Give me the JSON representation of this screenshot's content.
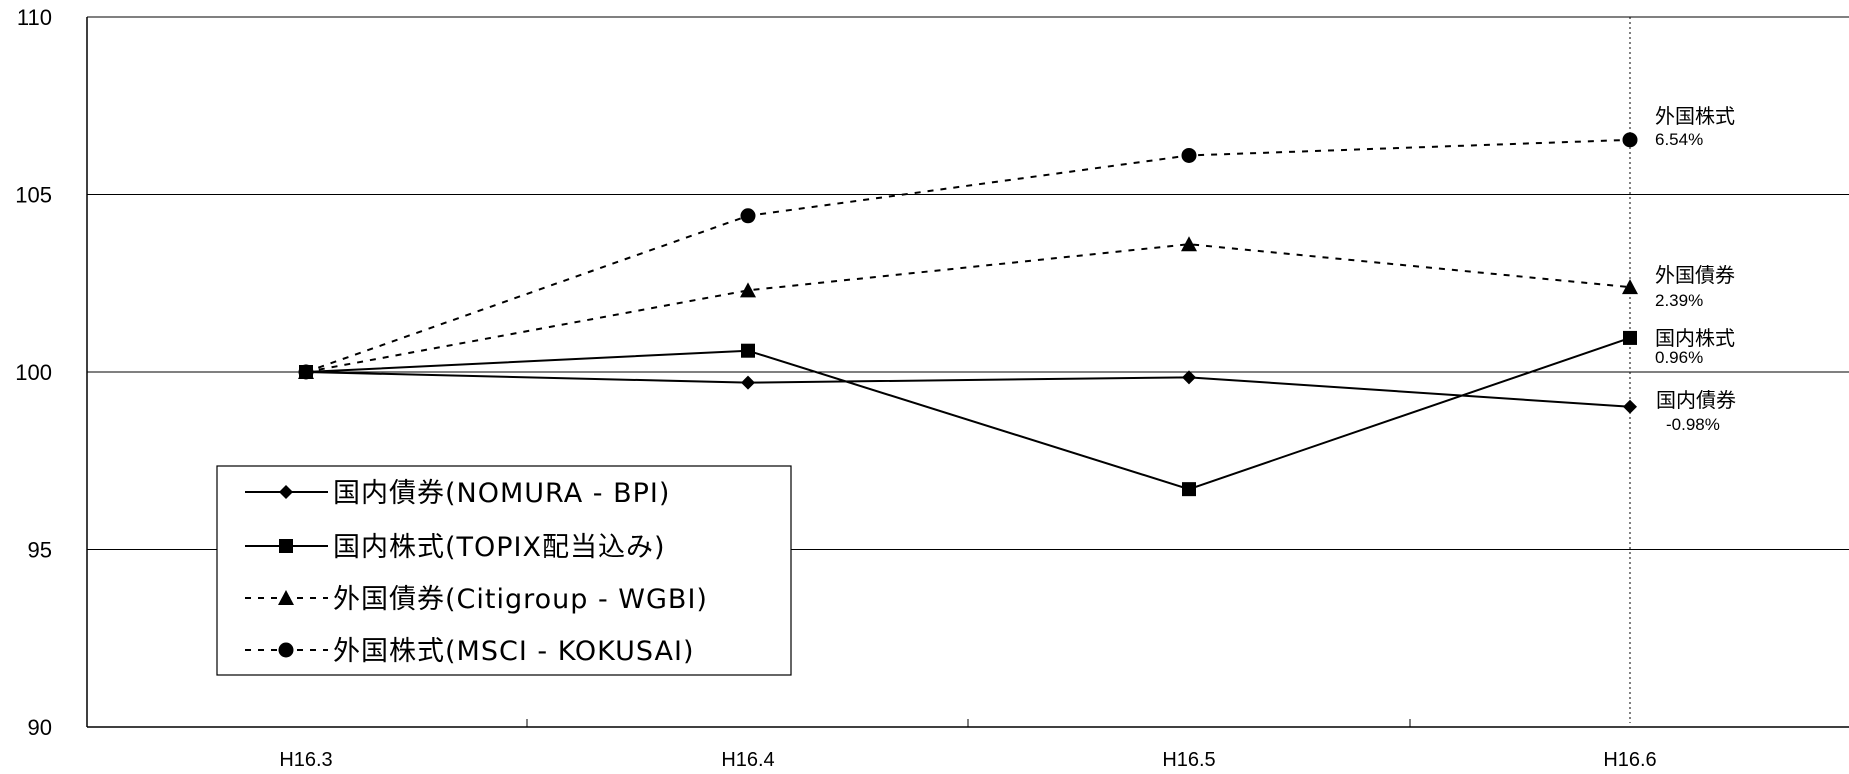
{
  "chart_data": {
    "type": "line",
    "categories": [
      "H16.3",
      "H16.4",
      "H16.5",
      "H16.6"
    ],
    "ylim": [
      90,
      110
    ],
    "yticks": [
      90,
      95,
      100,
      105,
      110
    ],
    "grid": true,
    "legend_position": "bottom-left",
    "series": [
      {
        "name": "国内債券(NOMURA - BPI)",
        "short": "国内債券",
        "end_label": "-0.98%",
        "values": [
          100.0,
          99.7,
          99.85,
          99.02
        ],
        "marker": "diamond",
        "dash": "solid"
      },
      {
        "name": "国内株式(TOPIX配当込み)",
        "short": "国内株式",
        "end_label": "0.96%",
        "values": [
          100.0,
          100.6,
          96.7,
          100.96
        ],
        "marker": "square",
        "dash": "solid"
      },
      {
        "name": "外国債券(Citigroup - WGBI)",
        "short": "外国債券",
        "end_label": "2.39%",
        "values": [
          100.0,
          102.3,
          103.6,
          102.39
        ],
        "marker": "triangle",
        "dash": "dashed"
      },
      {
        "name": "外国株式(MSCI - KOKUSAI)",
        "short": "外国株式",
        "end_label": "6.54%",
        "values": [
          100.0,
          104.4,
          106.1,
          106.54
        ],
        "marker": "circle",
        "dash": "dashed"
      }
    ]
  }
}
